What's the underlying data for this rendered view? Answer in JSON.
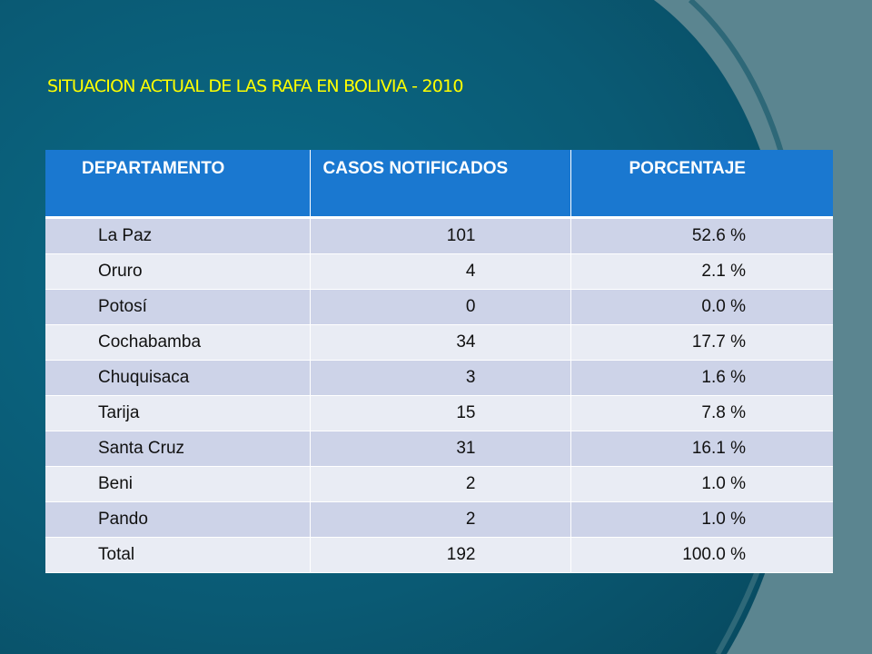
{
  "slide": {
    "title": "SITUACION ACTUAL DE LAS RAFA EN BOLIVIA - 2010",
    "colors": {
      "title": "#ffff00",
      "header": "#1a78d0",
      "row_odd": "#cdd3e8",
      "row_even": "#e9ecf4"
    }
  },
  "table": {
    "headers": [
      "DEPARTAMENTO",
      "CASOS NOTIFICADOS",
      "PORCENTAJE"
    ],
    "rows": [
      {
        "departamento": "La Paz",
        "casos": "101",
        "porcentaje": "52.6 %"
      },
      {
        "departamento": "Oruro",
        "casos": "4",
        "porcentaje": "2.1 %"
      },
      {
        "departamento": "Potosí",
        "casos": "0",
        "porcentaje": "0.0 %"
      },
      {
        "departamento": "Cochabamba",
        "casos": "34",
        "porcentaje": "17.7 %"
      },
      {
        "departamento": "Chuquisaca",
        "casos": "3",
        "porcentaje": "1.6 %"
      },
      {
        "departamento": "Tarija",
        "casos": "15",
        "porcentaje": "7.8 %"
      },
      {
        "departamento": "Santa Cruz",
        "casos": "31",
        "porcentaje": "16.1 %"
      },
      {
        "departamento": "Beni",
        "casos": "2",
        "porcentaje": "1.0 %"
      },
      {
        "departamento": "Pando",
        "casos": "2",
        "porcentaje": "1.0 %"
      },
      {
        "departamento": "Total",
        "casos": "192",
        "porcentaje": "100.0 %"
      }
    ]
  }
}
